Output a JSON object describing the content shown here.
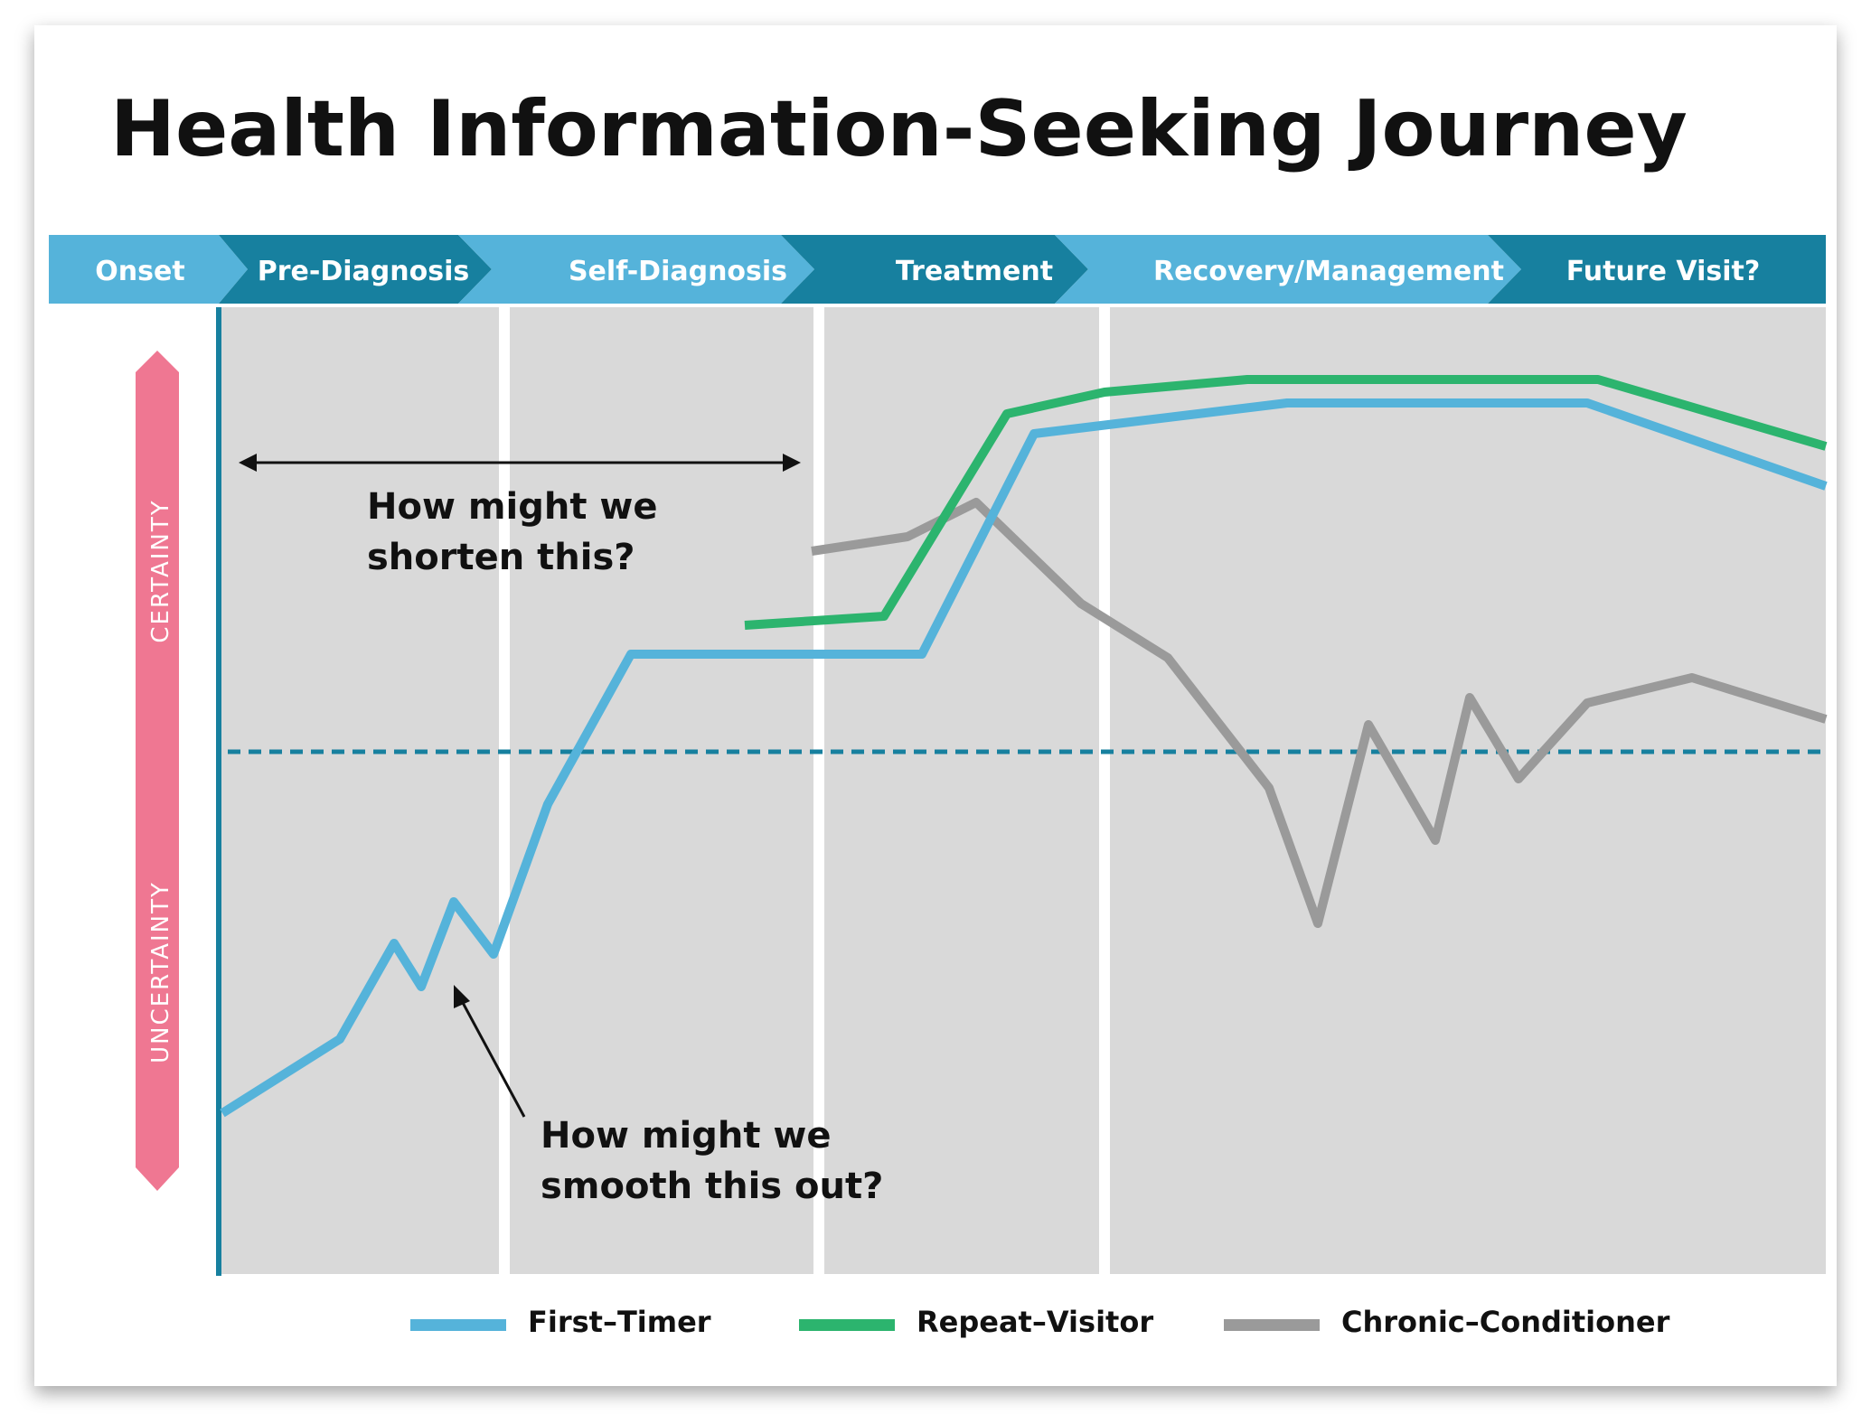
{
  "title": "Health Information-Seeking Journey",
  "stages": [
    "Onset",
    "Pre-Diagnosis",
    "Self-Diagnosis",
    "Treatment",
    "Recovery/Management",
    "Future Visit?"
  ],
  "axis": {
    "top_label": "CERTAINTY",
    "bottom_label": "UNCERTAINTY"
  },
  "annotations": [
    {
      "line1": "How might we",
      "line2": "shorten this?"
    },
    {
      "line1": "How might we",
      "line2": "smooth this out?"
    }
  ],
  "legend": [
    {
      "label": "First–Timer",
      "color": "#55b3da"
    },
    {
      "label": "Repeat–Visitor",
      "color": "#2cb46e"
    },
    {
      "label": "Chronic–Conditioner",
      "color": "#9a9a9a"
    }
  ],
  "colors": {
    "stage_light": "#55b3da",
    "stage_dark": "#17809f",
    "panel": "#d9d9d9",
    "axis_pink": "#ef7792",
    "threshold": "#17809f"
  }
}
